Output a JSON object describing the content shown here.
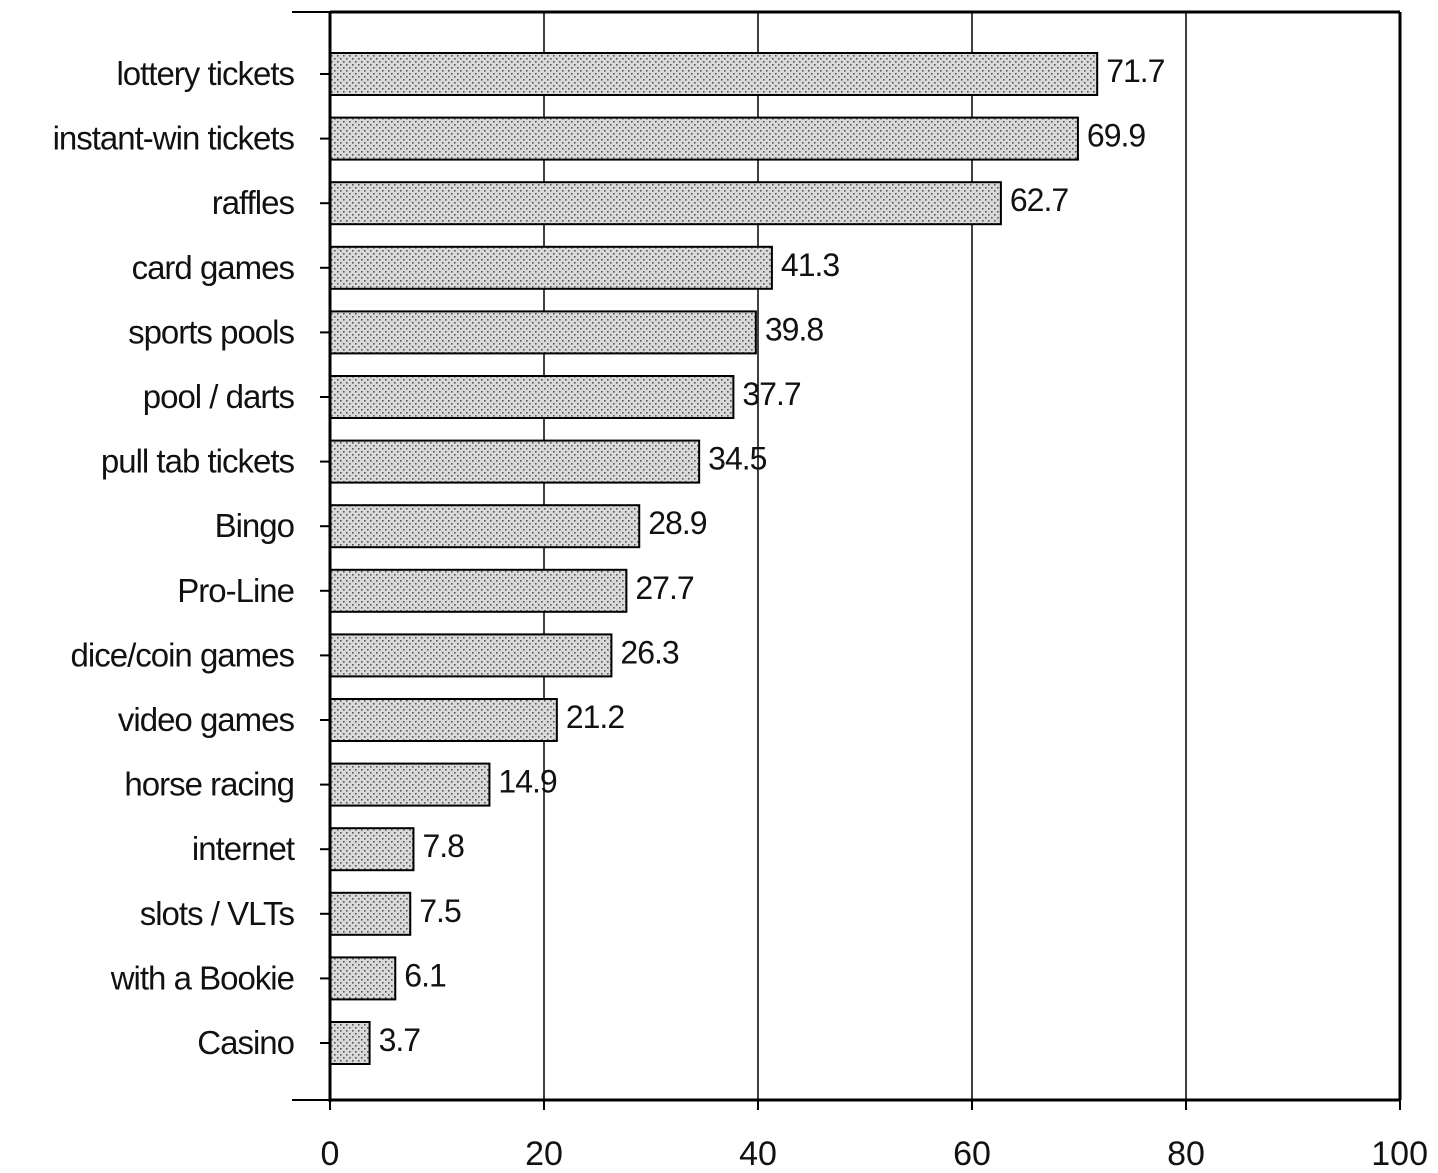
{
  "chart_data": {
    "type": "bar",
    "orientation": "horizontal",
    "categories": [
      "lottery tickets",
      "instant-win tickets",
      "raffles",
      "card games",
      "sports pools",
      "pool / darts",
      "pull tab tickets",
      "Bingo",
      "Pro-Line",
      "dice/coin games",
      "video games",
      "horse racing",
      "internet",
      "slots / VLTs",
      "with a Bookie",
      "Casino"
    ],
    "values": [
      71.7,
      69.9,
      62.7,
      41.3,
      39.8,
      37.7,
      34.5,
      28.9,
      27.7,
      26.3,
      21.2,
      14.9,
      7.8,
      7.5,
      6.1,
      3.7
    ],
    "data_labels": [
      "71.7",
      "69.9",
      "62.7",
      "41.3",
      "39.8",
      "37.7",
      "34.5",
      "28.9",
      "27.7",
      "26.3",
      "21.2",
      "14.9",
      "7.8",
      "7.5",
      "6.1",
      "3.7"
    ],
    "xlim": [
      0,
      100
    ],
    "x_ticks": [
      0,
      20,
      40,
      60,
      80,
      100
    ],
    "x_tick_labels": [
      "0",
      "20",
      "40",
      "60",
      "80",
      "100"
    ],
    "title": "",
    "xlabel": "",
    "ylabel": "",
    "grid": "vertical",
    "bar_fill": "#d9d9d9",
    "bar_pattern_dot": "#555555",
    "bar_stroke": "#000000"
  }
}
